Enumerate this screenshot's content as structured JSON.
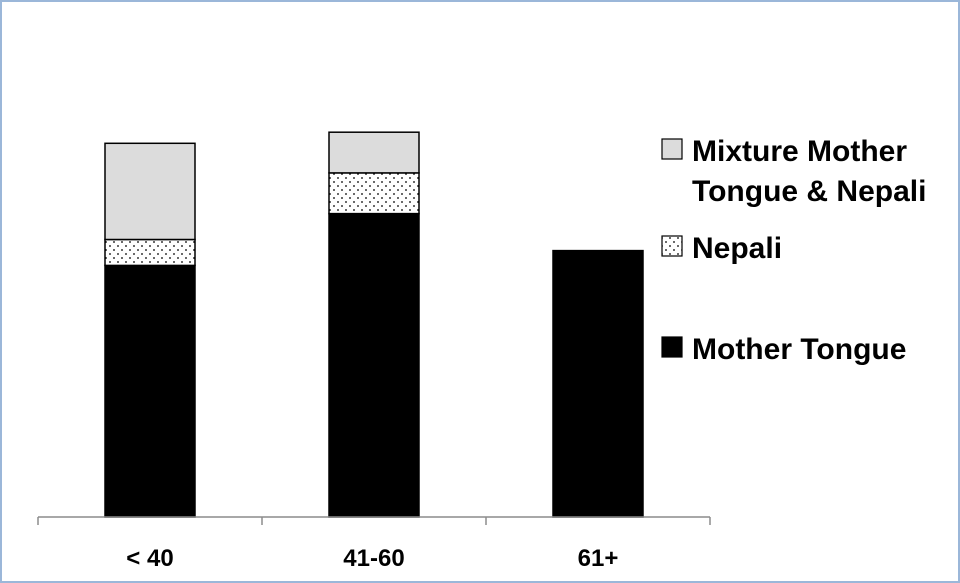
{
  "chart_data": {
    "type": "bar",
    "stacked": true,
    "categories": [
      "< 40",
      "41-60",
      "61+"
    ],
    "series": [
      {
        "name": "Mother Tongue",
        "values": [
          68,
          82,
          72
        ],
        "color": "#000000",
        "pattern": "solid"
      },
      {
        "name": "Nepali",
        "values": [
          7,
          11,
          0
        ],
        "color": "#ffffff",
        "pattern": "dotted"
      },
      {
        "name": "Mixture  Mother Tongue & Nepali",
        "values": [
          26,
          11,
          0
        ],
        "color": "#dcdcdc",
        "pattern": "solid"
      }
    ],
    "ylim": [
      0,
      110
    ],
    "grid": false,
    "y_axis_visible": false,
    "legend": {
      "position": "right",
      "order": [
        "Mixture  Mother Tongue & Nepali",
        "Nepali",
        "Mother Tongue"
      ],
      "lines": {
        "Mixture  Mother Tongue & Nepali": [
          "Mixture  Mother",
          "Tongue & Nepali"
        ],
        "Nepali": [
          "Nepali"
        ],
        "Mother Tongue": [
          "Mother Tongue"
        ]
      }
    },
    "frame_color": "#9bb7d9"
  }
}
